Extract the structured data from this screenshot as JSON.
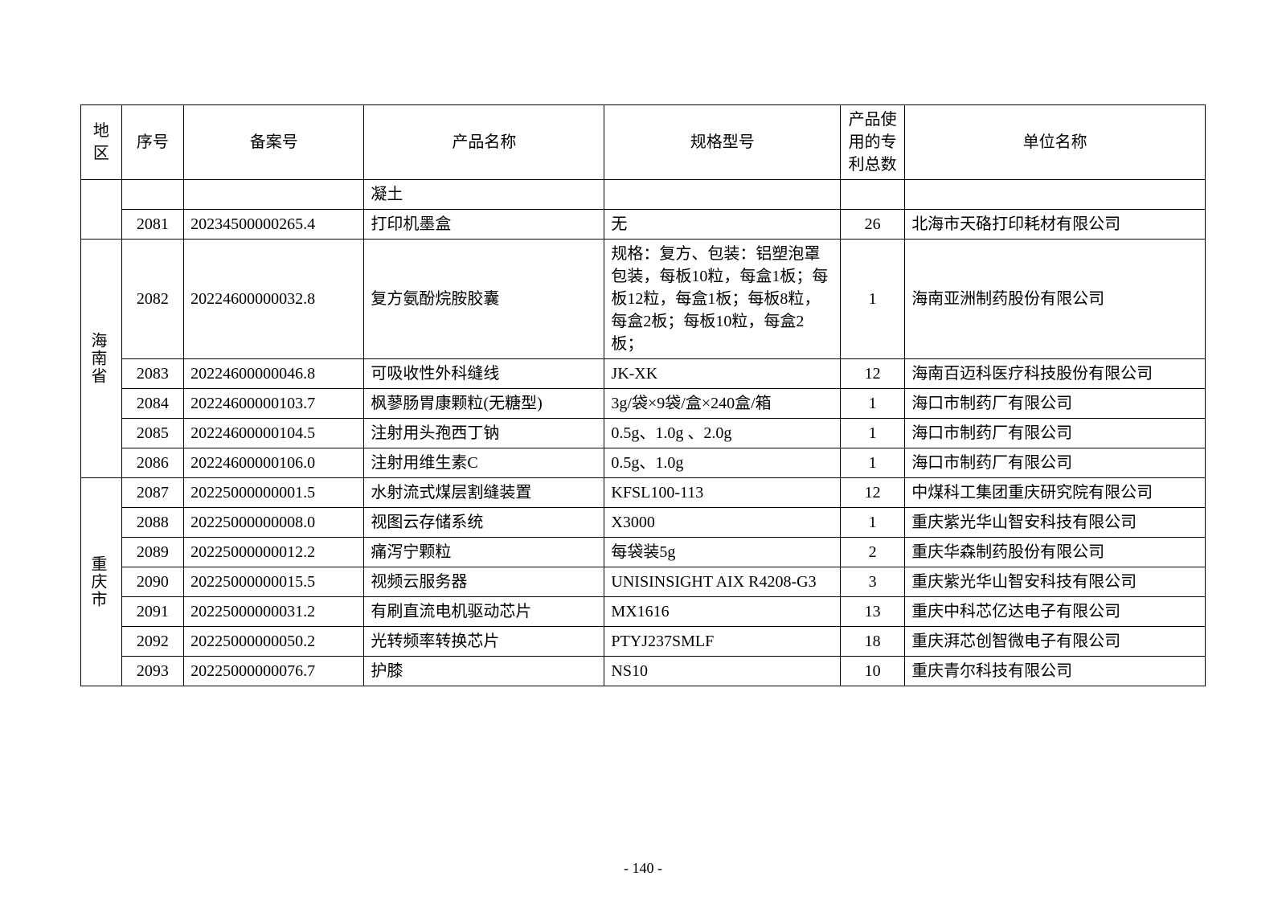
{
  "headers": {
    "region": "地区",
    "seq": "序号",
    "filing": "备案号",
    "product": "产品名称",
    "spec": "规格型号",
    "patents": "产品使用的专利总数",
    "unit": "单位名称"
  },
  "orphan_row": {
    "product": "凝土"
  },
  "row2081": {
    "seq": "2081",
    "filing": "20234500000265.4",
    "product": "打印机墨盒",
    "spec": "无",
    "patents": "26",
    "unit": "北海市天硌打印耗材有限公司"
  },
  "region_hainan": "海南省",
  "row2082": {
    "seq": "2082",
    "filing": "20224600000032.8",
    "product": "复方氨酚烷胺胶囊",
    "spec": "规格：复方、包装：铝塑泡罩包装，每板10粒，每盒1板；每板12粒，每盒1板；每板8粒，每盒2板；每板10粒，每盒2板；",
    "patents": "1",
    "unit": "海南亚洲制药股份有限公司"
  },
  "row2083": {
    "seq": "2083",
    "filing": "20224600000046.8",
    "product": "可吸收性外科缝线",
    "spec": "JK-XK",
    "patents": "12",
    "unit": "海南百迈科医疗科技股份有限公司"
  },
  "row2084": {
    "seq": "2084",
    "filing": "20224600000103.7",
    "product": "枫蓼肠胃康颗粒(无糖型)",
    "spec": "3g/袋×9袋/盒×240盒/箱",
    "patents": "1",
    "unit": "海口市制药厂有限公司"
  },
  "row2085": {
    "seq": "2085",
    "filing": "20224600000104.5",
    "product": "注射用头孢西丁钠",
    "spec": "0.5g、1.0g 、2.0g",
    "patents": "1",
    "unit": "海口市制药厂有限公司"
  },
  "row2086": {
    "seq": "2086",
    "filing": "20224600000106.0",
    "product": "注射用维生素C",
    "spec": "0.5g、1.0g",
    "patents": "1",
    "unit": "海口市制药厂有限公司"
  },
  "region_chongqing": "重庆市",
  "row2087": {
    "seq": "2087",
    "filing": "20225000000001.5",
    "product": "水射流式煤层割缝装置",
    "spec": "KFSL100-113",
    "patents": "12",
    "unit": "中煤科工集团重庆研究院有限公司"
  },
  "row2088": {
    "seq": "2088",
    "filing": "20225000000008.0",
    "product": "视图云存储系统",
    "spec": "X3000",
    "patents": "1",
    "unit": "重庆紫光华山智安科技有限公司"
  },
  "row2089": {
    "seq": "2089",
    "filing": "20225000000012.2",
    "product": "痛泻宁颗粒",
    "spec": "每袋装5g",
    "patents": "2",
    "unit": "重庆华森制药股份有限公司"
  },
  "row2090": {
    "seq": "2090",
    "filing": "20225000000015.5",
    "product": "视频云服务器",
    "spec": "UNISINSIGHT AIX R4208-G3",
    "patents": "3",
    "unit": "重庆紫光华山智安科技有限公司"
  },
  "row2091": {
    "seq": "2091",
    "filing": "20225000000031.2",
    "product": "有刷直流电机驱动芯片",
    "spec": "MX1616",
    "patents": "13",
    "unit": "重庆中科芯亿达电子有限公司"
  },
  "row2092": {
    "seq": "2092",
    "filing": "20225000000050.2",
    "product": "光转频率转换芯片",
    "spec": "PTYJ237SMLF",
    "patents": "18",
    "unit": "重庆湃芯创智微电子有限公司"
  },
  "row2093": {
    "seq": "2093",
    "filing": "20225000000076.7",
    "product": "护膝",
    "spec": "NS10",
    "patents": "10",
    "unit": "重庆青尔科技有限公司"
  },
  "page_number": "- 140 -"
}
